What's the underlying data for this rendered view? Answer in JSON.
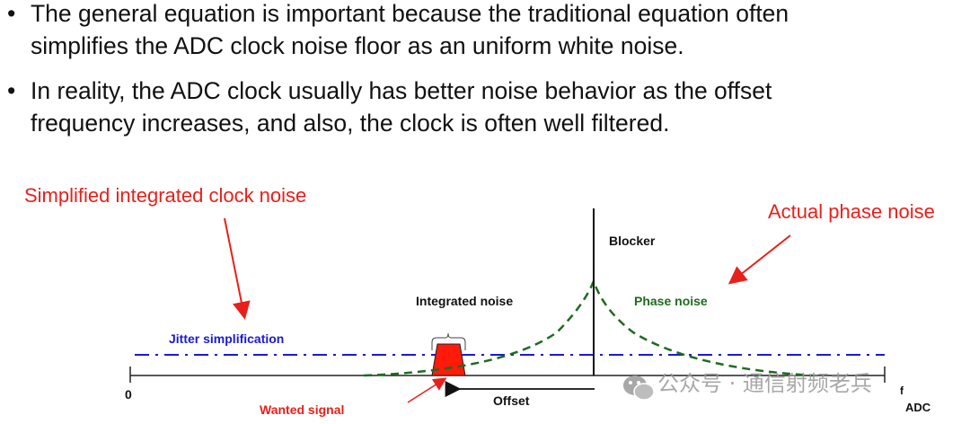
{
  "bullets": [
    {
      "bullet_char": "•",
      "lines": [
        "The general equation is important because the traditional equation often",
        "simplifies the ADC clock noise floor as an uniform white noise."
      ]
    },
    {
      "bullet_char": "•",
      "lines": [
        "In reality, the ADC clock usually has better noise behavior as the offset",
        "frequency increases, and also, the clock is often well filtered."
      ]
    }
  ],
  "diagram": {
    "callout_left": "Simplified integrated clock noise",
    "callout_right": "Actual phase noise",
    "blocker": "Blocker",
    "integrated_noise": "Integrated noise",
    "phase_noise": "Phase noise",
    "jitter_simplification": "Jitter simplification",
    "wanted_signal": "Wanted signal",
    "offset": "Offset",
    "axis_origin": "0",
    "axis_end_f": "f",
    "axis_end_sub": "ADC",
    "colors": {
      "callout": "#e8201b",
      "jitter": "#1a1ad6",
      "phase_noise": "#1e6b1e",
      "signal": "#ff1a0a"
    }
  },
  "watermark": {
    "icon": "wechat-icon",
    "text": "公众号 · 通信射频老兵"
  }
}
